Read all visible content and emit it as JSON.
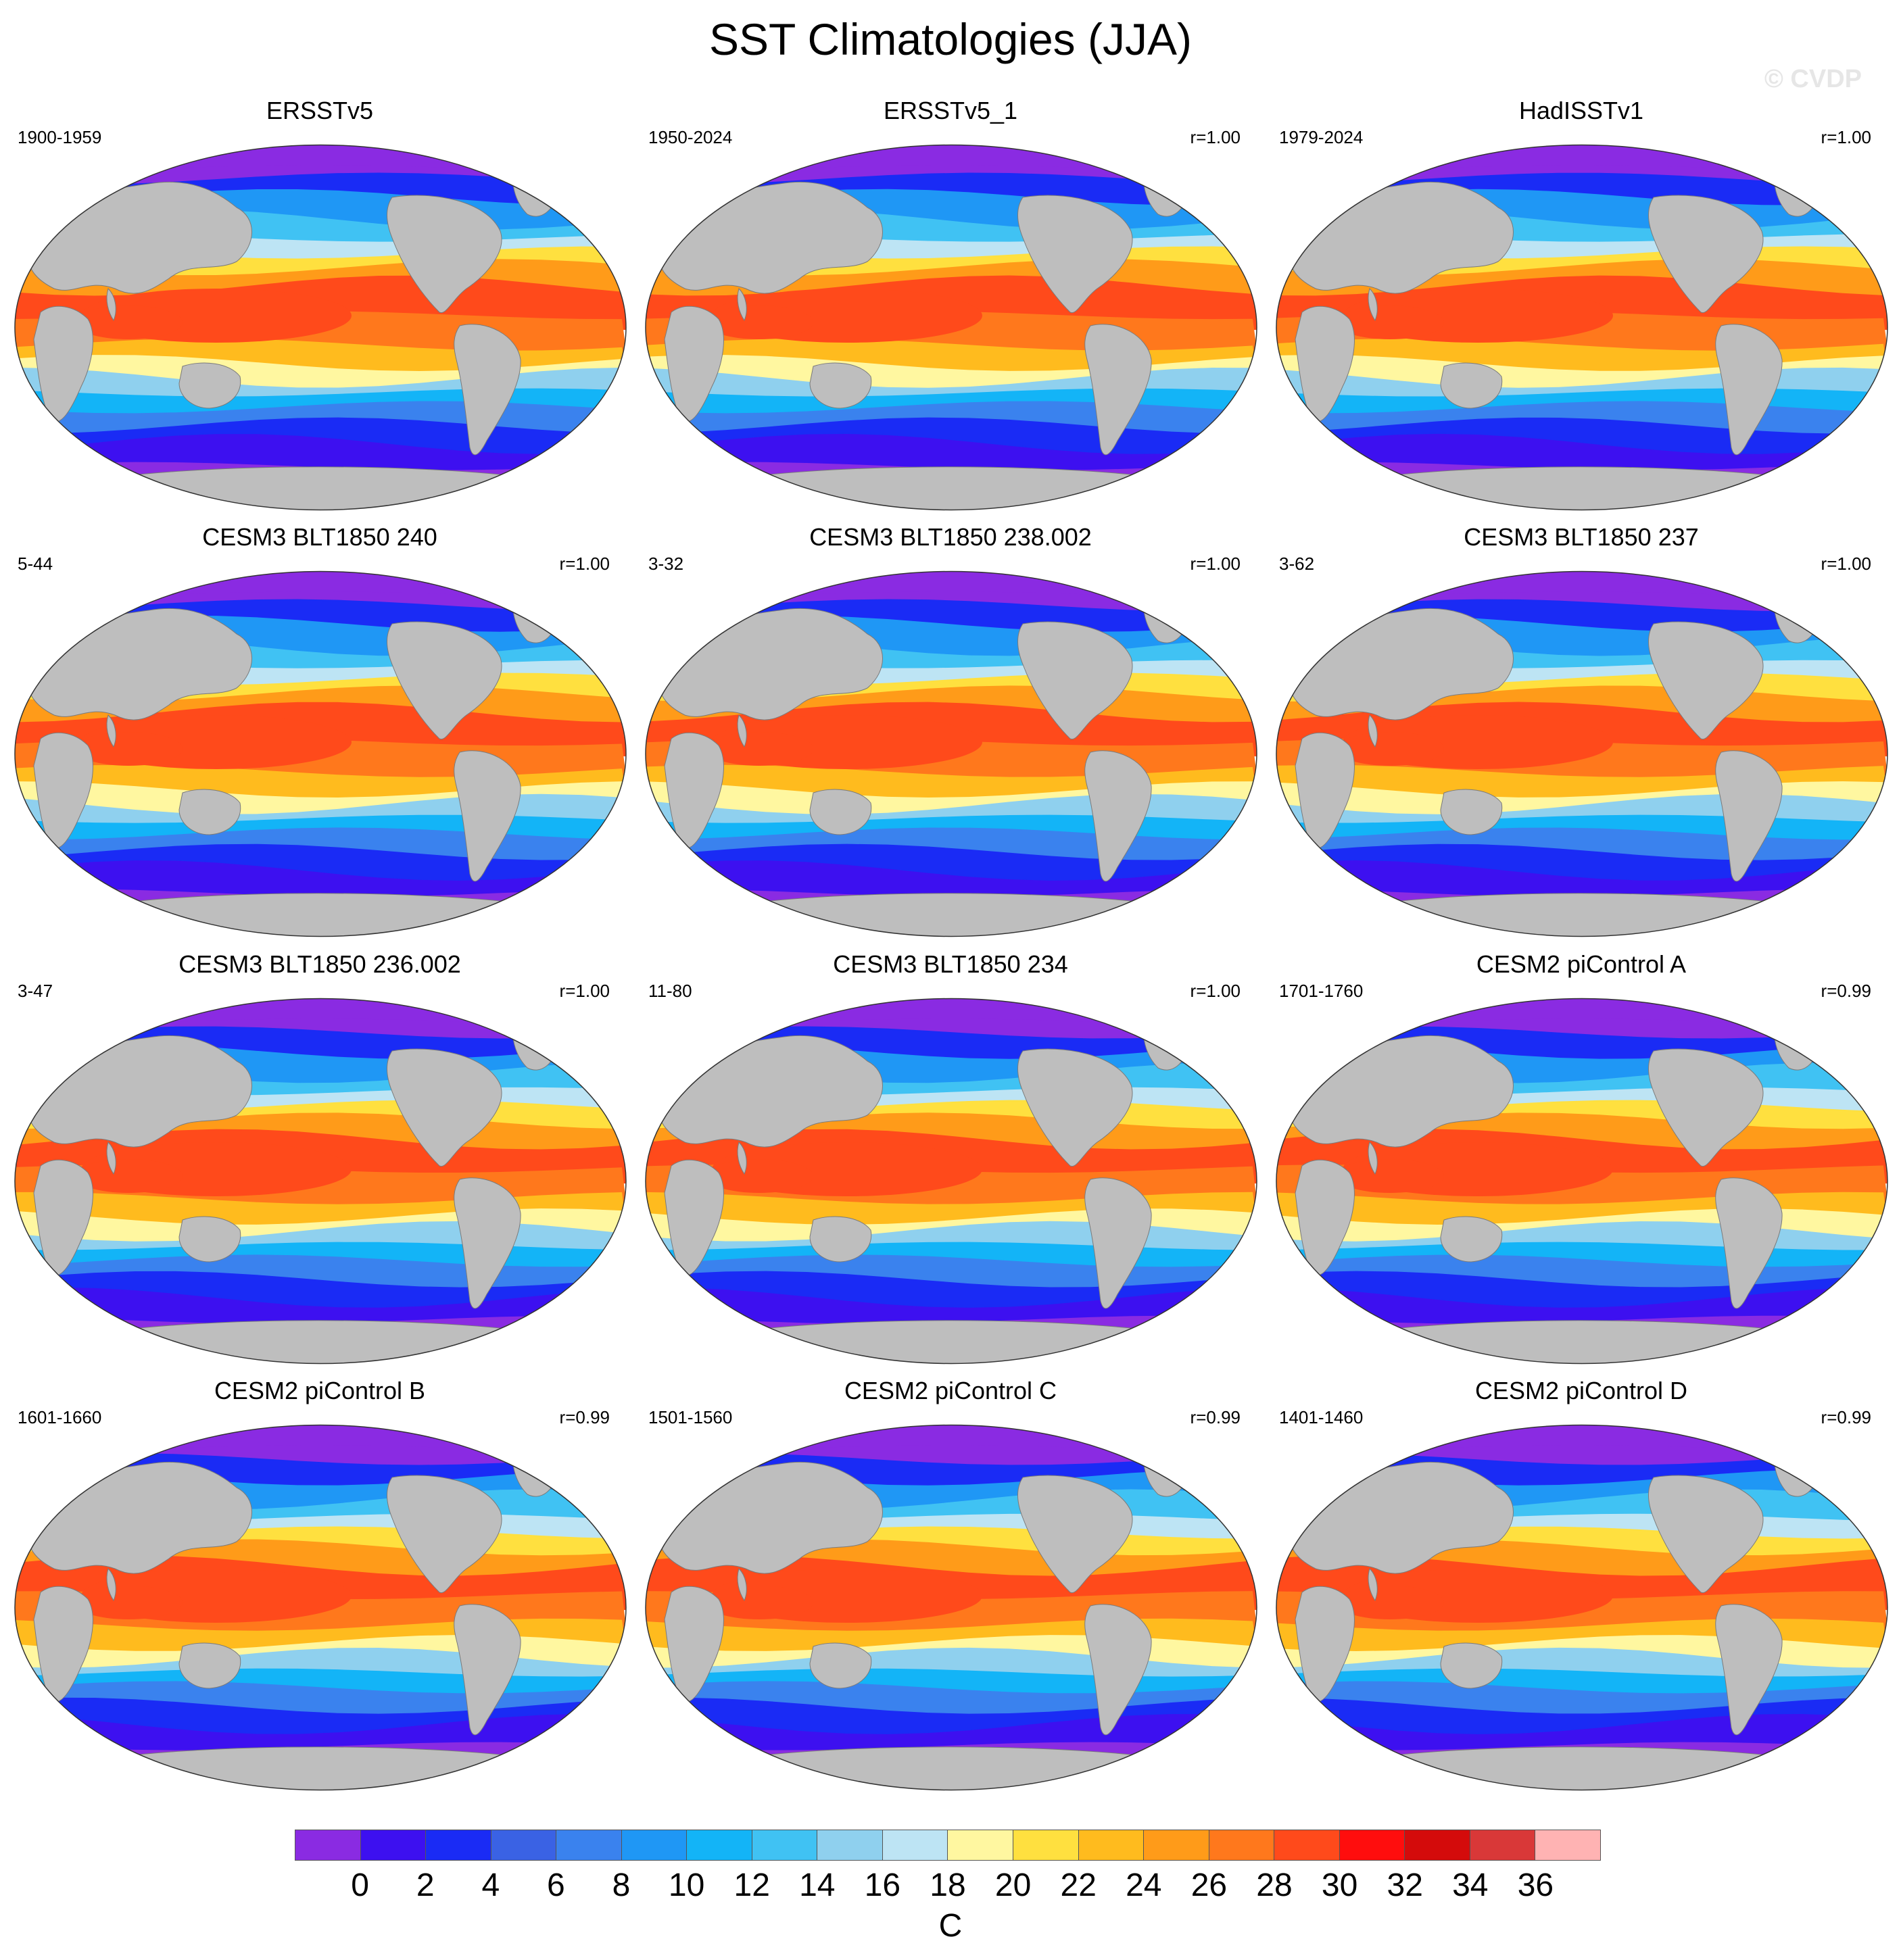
{
  "title": "SST Climatologies (JJA)",
  "watermark": "© CVDP",
  "colorbar": {
    "colors": [
      "#8a2be2",
      "#3d10f0",
      "#1a2bf5",
      "#3a62e4",
      "#3a82ee",
      "#1f97f5",
      "#13b4f7",
      "#40c2f3",
      "#8fd0ee",
      "#bde4f4",
      "#fff7a0",
      "#ffe03f",
      "#ffbb1e",
      "#ff9b19",
      "#ff781c",
      "#ff4a1b",
      "#ff0d0d",
      "#d40b0b",
      "#d93838",
      "#ffb3b3"
    ],
    "ticks": [
      "0",
      "2",
      "4",
      "6",
      "8",
      "10",
      "12",
      "14",
      "16",
      "18",
      "20",
      "22",
      "24",
      "26",
      "28",
      "30",
      "32",
      "34",
      "36"
    ],
    "units": "C"
  },
  "panels": [
    {
      "title": "ERSSTv5",
      "period": "1900-1959",
      "r": ""
    },
    {
      "title": "ERSSTv5_1",
      "period": "1950-2024",
      "r": "r=1.00"
    },
    {
      "title": "HadISSTv1",
      "period": "1979-2024",
      "r": "r=1.00"
    },
    {
      "title": "CESM3 BLT1850 240",
      "period": "5-44",
      "r": "r=1.00"
    },
    {
      "title": "CESM3 BLT1850 238.002",
      "period": "3-32",
      "r": "r=1.00"
    },
    {
      "title": "CESM3 BLT1850 237",
      "period": "3-62",
      "r": "r=1.00"
    },
    {
      "title": "CESM3 BLT1850 236.002",
      "period": "3-47",
      "r": "r=1.00"
    },
    {
      "title": "CESM3 BLT1850 234",
      "period": "11-80",
      "r": "r=1.00"
    },
    {
      "title": "CESM2 piControl A",
      "period": "1701-1760",
      "r": "r=0.99"
    },
    {
      "title": "CESM2 piControl B",
      "period": "1601-1660",
      "r": "r=0.99"
    },
    {
      "title": "CESM2 piControl C",
      "period": "1501-1560",
      "r": "r=0.99"
    },
    {
      "title": "CESM2 piControl D",
      "period": "1401-1460",
      "r": "r=0.99"
    }
  ]
}
